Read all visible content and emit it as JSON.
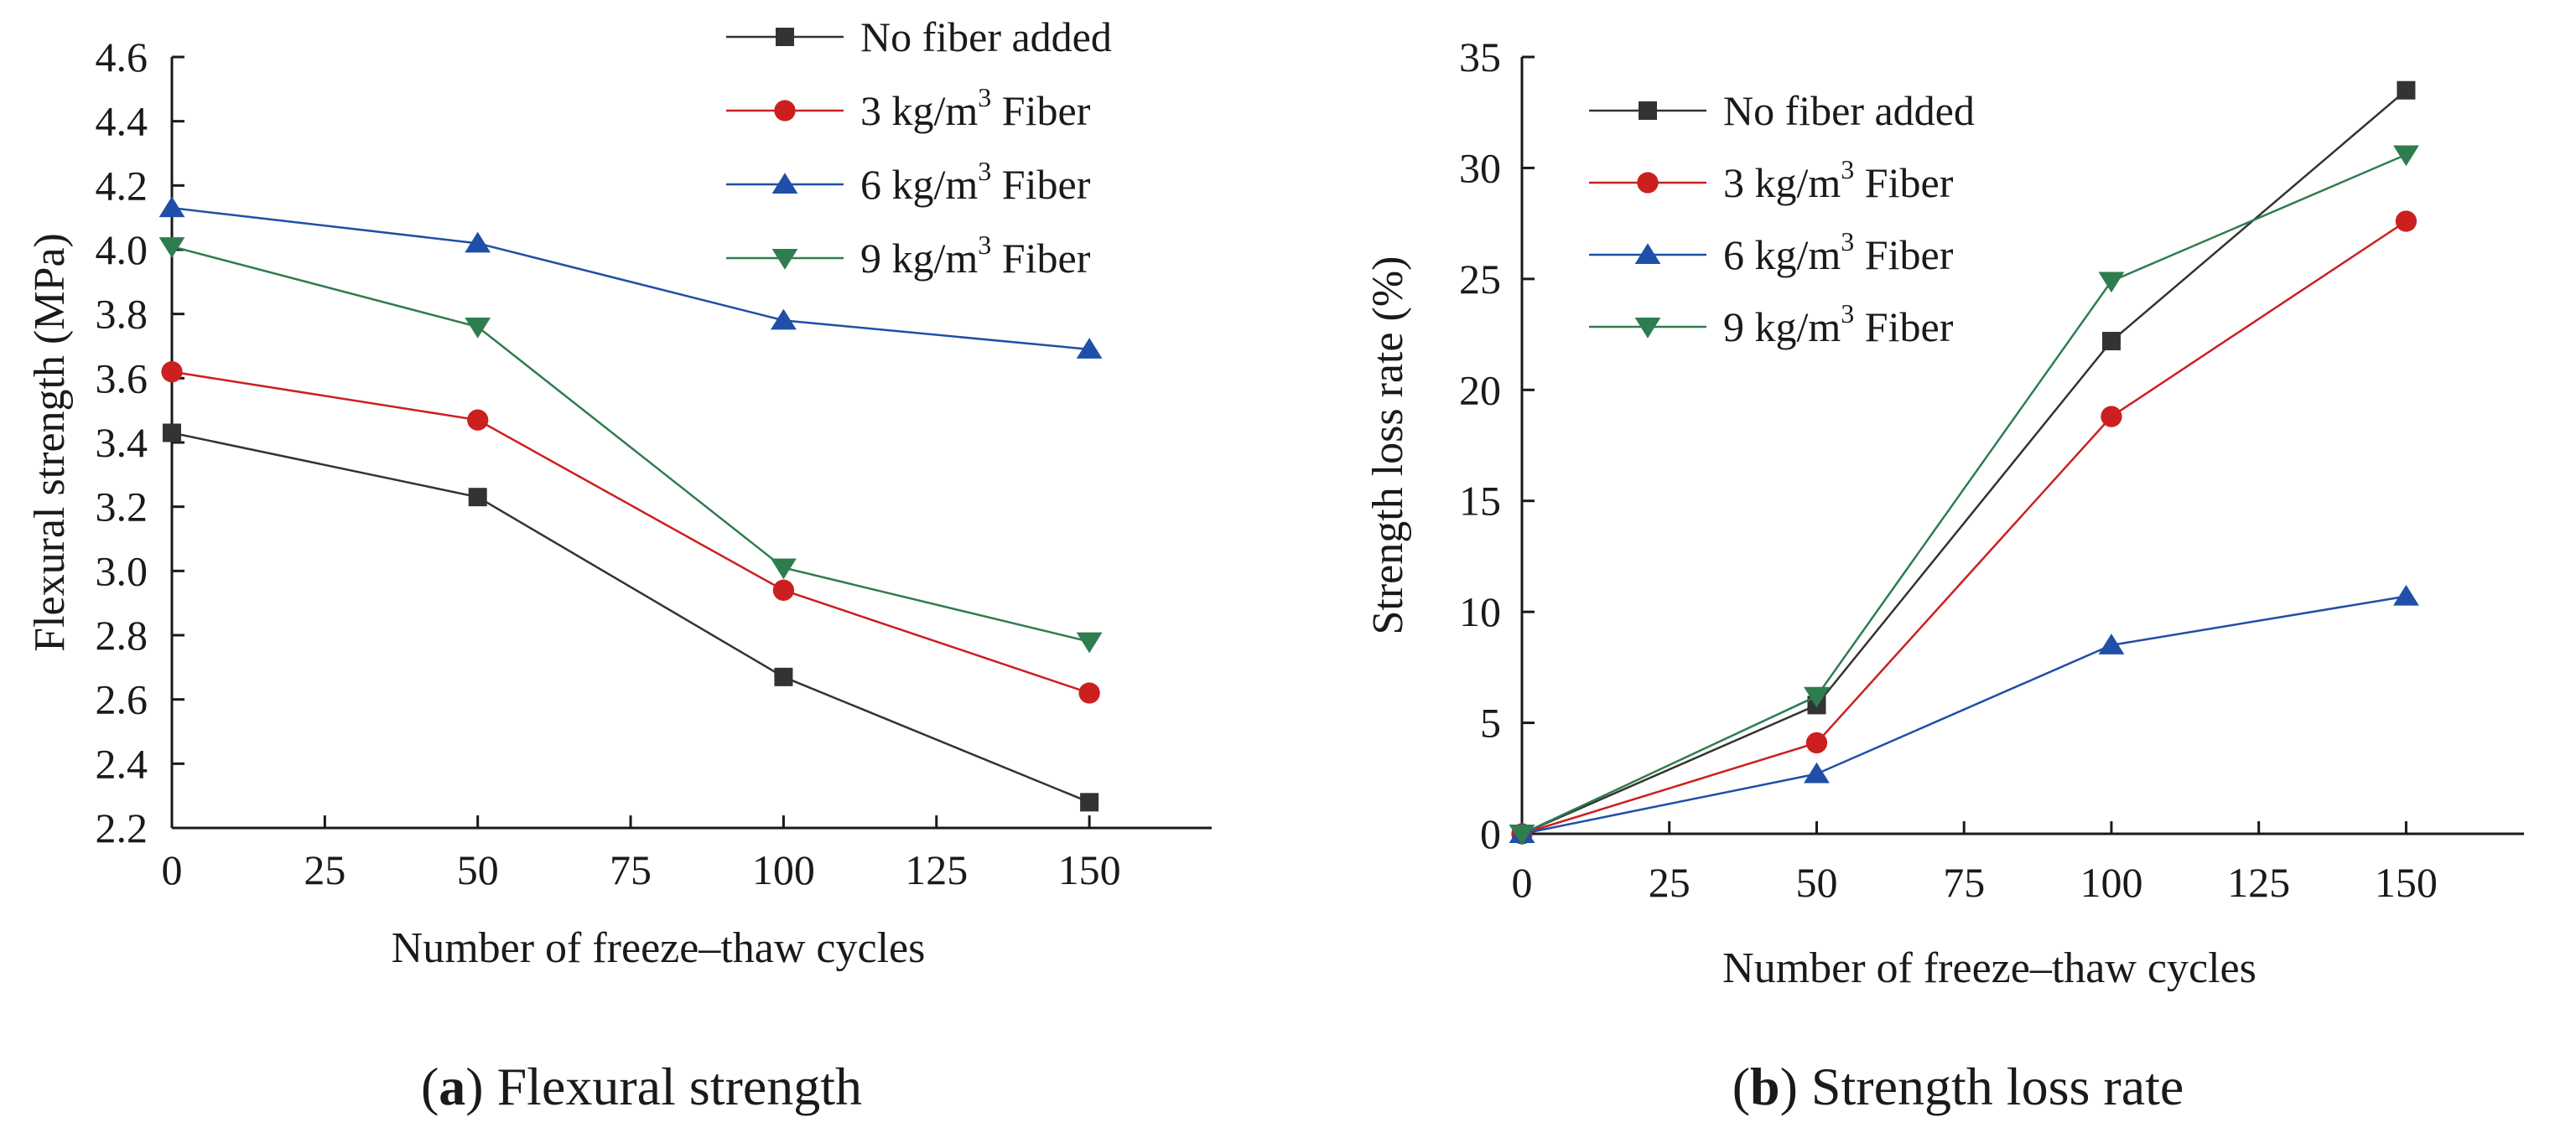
{
  "chart_data": [
    {
      "id": "a",
      "type": "line",
      "title": "",
      "caption": {
        "open": "(",
        "letter": "a",
        "close": ")",
        "text": " Flexural strength"
      },
      "xlabel": "Number of freeze–thaw cycles",
      "ylabel": "Flexural strength (MPa)",
      "xlim": [
        0,
        170
      ],
      "ylim": [
        2.2,
        4.6
      ],
      "xticks": [
        0,
        25,
        50,
        75,
        100,
        125,
        150
      ],
      "xtick_labels": [
        "0",
        "25",
        "50",
        "75",
        "100",
        "125",
        "150"
      ],
      "yticks": [
        2.2,
        2.4,
        2.6,
        2.8,
        3.0,
        3.2,
        3.4,
        3.6,
        3.8,
        4.0,
        4.2,
        4.4,
        4.6
      ],
      "ytick_labels": [
        "2.2",
        "2.4",
        "2.6",
        "2.8",
        "3.0",
        "3.2",
        "3.4",
        "3.6",
        "3.8",
        "4.0",
        "4.2",
        "4.4",
        "4.6"
      ],
      "legend_position": "top-right",
      "x": [
        0,
        50,
        100,
        150
      ],
      "series": [
        {
          "name": "No fiber added",
          "pre": "No fiber added",
          "sup": "",
          "post": "",
          "marker": "square",
          "color": "#333333",
          "values": [
            3.43,
            3.23,
            2.67,
            2.28
          ]
        },
        {
          "name": "3 kg/m3 Fiber",
          "pre": "3 kg/m",
          "sup": "3",
          "post": " Fiber",
          "marker": "circle",
          "color": "#cc1f1f",
          "values": [
            3.62,
            3.47,
            2.94,
            2.62
          ]
        },
        {
          "name": "6 kg/m3 Fiber",
          "pre": "6 kg/m",
          "sup": "3",
          "post": " Fiber",
          "marker": "triangle-up",
          "color": "#1f4fa8",
          "values": [
            4.13,
            4.02,
            3.78,
            3.69
          ]
        },
        {
          "name": "9 kg/m3 Fiber",
          "pre": "9 kg/m",
          "sup": "3",
          "post": " Fiber",
          "marker": "triangle-down",
          "color": "#2e7d4f",
          "values": [
            4.01,
            3.76,
            3.01,
            2.78
          ]
        }
      ]
    },
    {
      "id": "b",
      "type": "line",
      "title": "",
      "caption": {
        "open": "(",
        "letter": "b",
        "close": ")",
        "text": " Strength loss rate"
      },
      "xlabel": "Number of freeze–thaw cycles",
      "ylabel": "Strength loss rate (%)",
      "xlim": [
        0,
        170
      ],
      "ylim": [
        0,
        35
      ],
      "xticks": [
        0,
        25,
        50,
        75,
        100,
        125,
        150
      ],
      "xtick_labels": [
        "0",
        "25",
        "50",
        "75",
        "100",
        "125",
        "150"
      ],
      "yticks": [
        0,
        5,
        10,
        15,
        20,
        25,
        30,
        35
      ],
      "ytick_labels": [
        "0",
        "5",
        "10",
        "15",
        "20",
        "25",
        "30",
        "35"
      ],
      "legend_position": "top-left",
      "x": [
        0,
        50,
        100,
        150
      ],
      "series": [
        {
          "name": "No fiber added",
          "pre": "No fiber added",
          "sup": "",
          "post": "",
          "marker": "square",
          "color": "#333333",
          "values": [
            0,
            5.8,
            22.2,
            33.5
          ]
        },
        {
          "name": "3 kg/m3 Fiber",
          "pre": "3 kg/m",
          "sup": "3",
          "post": " Fiber",
          "marker": "circle",
          "color": "#cc1f1f",
          "values": [
            0,
            4.1,
            18.8,
            27.6
          ]
        },
        {
          "name": "6 kg/m3 Fiber",
          "pre": "6 kg/m",
          "sup": "3",
          "post": " Fiber",
          "marker": "triangle-up",
          "color": "#1f4fa8",
          "values": [
            0,
            2.7,
            8.5,
            10.7
          ]
        },
        {
          "name": "9 kg/m3 Fiber",
          "pre": "9 kg/m",
          "sup": "3",
          "post": " Fiber",
          "marker": "triangle-down",
          "color": "#2e7d4f",
          "values": [
            0,
            6.2,
            24.9,
            30.6
          ]
        }
      ]
    }
  ]
}
